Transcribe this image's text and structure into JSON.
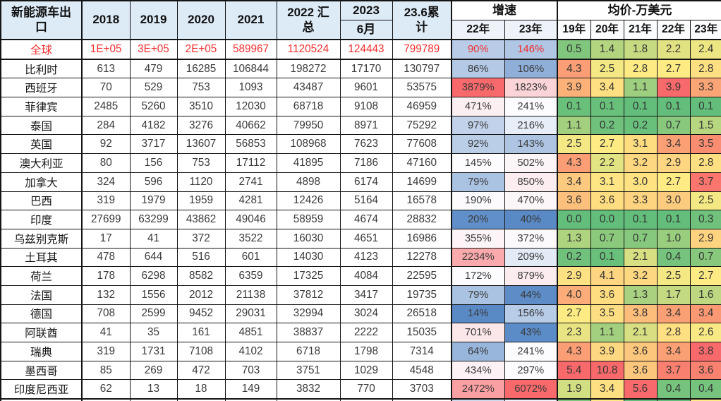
{
  "colors": {
    "header_bg": "#DDEBF7",
    "subheader_growth_bg": "#EEF3FA",
    "subheader_price_bg": "#FBFCFE",
    "group_header_bg": "#FFFFFF",
    "border": "#141414",
    "body_text": "#3A3A3A",
    "label_text": "#141414",
    "global_row_text": "#F23030",
    "growth_scale": {
      "min": "#5A8AC6",
      "mid": "#FCFCFF",
      "max": "#F8696B"
    },
    "price_scale": {
      "min": "#63BE7B",
      "mid": "#FFEB84",
      "max": "#F8696B"
    }
  },
  "chart_data": {
    "type": "table",
    "title": "新能源车出口",
    "header": {
      "corner": "新能源车出口",
      "years": [
        "2018",
        "2019",
        "2020",
        "2021"
      ],
      "total_2022": "2022 汇总",
      "june_2023_top": "2023",
      "june_2023_bottom": "6月",
      "cumulative": "23.6累计",
      "growth_group": "增速",
      "growth_years": [
        "22年",
        "23年"
      ],
      "price_group": "均价-万美元",
      "price_years": [
        "19年",
        "20年",
        "21年",
        "22年",
        "23年"
      ]
    },
    "rows": [
      {
        "name": "全球",
        "exports": [
          "1E+05",
          "3E+05",
          "2E+05",
          "589967",
          "1120524",
          "124443",
          "799789"
        ],
        "growth": [
          "90%",
          "146%"
        ],
        "price": [
          "0.5",
          "1.4",
          "1.8",
          "2.2",
          "2.4"
        ],
        "red_text": true
      },
      {
        "name": "比利时",
        "exports": [
          "613",
          "479",
          "16285",
          "106844",
          "198272",
          "17170",
          "130797"
        ],
        "growth": [
          "86%",
          "106%"
        ],
        "price": [
          "4.3",
          "2.5",
          "2.8",
          "2.7",
          "2.8"
        ],
        "red_text": false
      },
      {
        "name": "西班牙",
        "exports": [
          "70",
          "529",
          "753",
          "1093",
          "43487",
          "9601",
          "53575"
        ],
        "growth": [
          "3879%",
          "1823%"
        ],
        "price": [
          "3.9",
          "3.4",
          "1.1",
          "3.9",
          "3.3"
        ],
        "red_text": false
      },
      {
        "name": "菲律宾",
        "exports": [
          "2485",
          "5260",
          "3510",
          "12030",
          "68718",
          "9108",
          "46959"
        ],
        "growth": [
          "471%",
          "241%"
        ],
        "price": [
          "0.1",
          "0.1",
          "0.1",
          "0.1",
          "0.1"
        ],
        "red_text": false
      },
      {
        "name": "泰国",
        "exports": [
          "284",
          "4182",
          "3276",
          "40662",
          "79950",
          "8971",
          "75292"
        ],
        "growth": [
          "97%",
          "216%"
        ],
        "price": [
          "1.1",
          "0.2",
          "0.2",
          "0.7",
          "1.5"
        ],
        "red_text": false
      },
      {
        "name": "英国",
        "exports": [
          "92",
          "3717",
          "13607",
          "56853",
          "108968",
          "7623",
          "77608"
        ],
        "growth": [
          "92%",
          "143%"
        ],
        "price": [
          "2.5",
          "2.7",
          "3.1",
          "3.4",
          "3.5"
        ],
        "red_text": false
      },
      {
        "name": "澳大利亚",
        "exports": [
          "80",
          "156",
          "753",
          "17112",
          "41895",
          "7186",
          "47160"
        ],
        "growth": [
          "145%",
          "502%"
        ],
        "price": [
          "4.3",
          "2.2",
          "3.2",
          "2.9",
          "2.8"
        ],
        "red_text": false
      },
      {
        "name": "加拿大",
        "exports": [
          "324",
          "596",
          "1120",
          "2741",
          "4898",
          "6174",
          "14699"
        ],
        "growth": [
          "79%",
          "850%"
        ],
        "price": [
          "3.4",
          "3.1",
          "3.0",
          "2.7",
          "3.7"
        ],
        "red_text": false
      },
      {
        "name": "巴西",
        "exports": [
          "319",
          "1979",
          "1959",
          "4281",
          "12426",
          "5164",
          "16578"
        ],
        "growth": [
          "190%",
          "470%"
        ],
        "price": [
          "3.6",
          "3.6",
          "3.3",
          "3.0",
          "2.5"
        ],
        "red_text": false
      },
      {
        "name": "印度",
        "exports": [
          "27699",
          "63299",
          "43862",
          "49046",
          "58959",
          "4674",
          "28832"
        ],
        "growth": [
          "20%",
          "40%"
        ],
        "price": [
          "0.0",
          "0.0",
          "0.1",
          "0.1",
          "0.3"
        ],
        "red_text": false
      },
      {
        "name": "乌兹别克斯",
        "exports": [
          "17",
          "41",
          "372",
          "3522",
          "16030",
          "4651",
          "16986"
        ],
        "growth": [
          "355%",
          "372%"
        ],
        "price": [
          "1.3",
          "0.7",
          "0.7",
          "1.0",
          "2.9"
        ],
        "red_text": false
      },
      {
        "name": "土耳其",
        "exports": [
          "478",
          "644",
          "516",
          "601",
          "14030",
          "4123",
          "12278"
        ],
        "growth": [
          "2234%",
          "209%"
        ],
        "price": [
          "0.2",
          "0.1",
          "2.1",
          "0.4",
          "0.7"
        ],
        "red_text": false
      },
      {
        "name": "荷兰",
        "exports": [
          "178",
          "6298",
          "8582",
          "6359",
          "17325",
          "4084",
          "22595"
        ],
        "growth": [
          "172%",
          "879%"
        ],
        "price": [
          "2.9",
          "4.1",
          "3.2",
          "2.5",
          "2.7"
        ],
        "red_text": false
      },
      {
        "name": "法国",
        "exports": [
          "132",
          "1556",
          "2012",
          "21138",
          "37812",
          "3417",
          "19735"
        ],
        "growth": [
          "79%",
          "44%"
        ],
        "price": [
          "4.0",
          "3.6",
          "1.3",
          "1.7",
          "1.6"
        ],
        "red_text": false
      },
      {
        "name": "德国",
        "exports": [
          "708",
          "2599",
          "9452",
          "29031",
          "32994",
          "3024",
          "26518"
        ],
        "growth": [
          "14%",
          "156%"
        ],
        "price": [
          "2.7",
          "3.5",
          "3.8",
          "3.4",
          "3.4"
        ],
        "red_text": false
      },
      {
        "name": "阿联酋",
        "exports": [
          "41",
          "35",
          "161",
          "4851",
          "38837",
          "2222",
          "15035"
        ],
        "growth": [
          "701%",
          "43%"
        ],
        "price": [
          "2.3",
          "1.1",
          "2.1",
          "2.8",
          "2.6"
        ],
        "red_text": false
      },
      {
        "name": "瑞典",
        "exports": [
          "319",
          "1731",
          "7108",
          "4102",
          "6718",
          "1798",
          "7314"
        ],
        "growth": [
          "64%",
          "241%"
        ],
        "price": [
          "4.3",
          "3.9",
          "3.6",
          "3.4",
          "3.8"
        ],
        "red_text": false
      },
      {
        "name": "墨西哥",
        "exports": [
          "85",
          "269",
          "472",
          "703",
          "3751",
          "1029",
          "4548"
        ],
        "growth": [
          "434%",
          "297%"
        ],
        "price": [
          "5.4",
          "10.8",
          "3.6",
          "3.7",
          "3.6"
        ],
        "red_text": false
      },
      {
        "name": "印度尼西亚",
        "exports": [
          "62",
          "13",
          "18",
          "149",
          "3832",
          "770",
          "3703"
        ],
        "growth": [
          "2472%",
          "6072%"
        ],
        "price": [
          "1.9",
          "3.4",
          "5.6",
          "0.4",
          "0.4"
        ],
        "red_text": false
      }
    ],
    "partial_row_bg": {
      "growth": [
        "#CDD9ED",
        "#EEF2F9"
      ],
      "price": [
        "#7CC77E",
        "#FFE983",
        "#63BE7B",
        "#63BE7B",
        "#FFEB84"
      ]
    }
  }
}
